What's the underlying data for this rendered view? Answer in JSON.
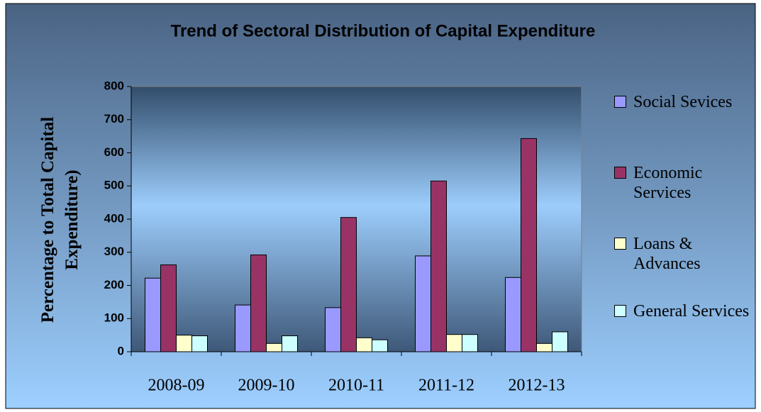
{
  "chart_data": {
    "type": "bar",
    "title": "Trend of Sectoral Distribution of Capital Expenditure",
    "y_label": "Percentage to Total Capital Expenditure)",
    "categories": [
      "2008-09",
      "2009-10",
      "2010-11",
      "2011-12",
      "2012-13"
    ],
    "series": [
      {
        "name": "Social Sevices",
        "color": "#9999ff",
        "values": [
          222,
          141,
          133,
          289,
          224
        ]
      },
      {
        "name": "Economic Services",
        "color": "#993366",
        "values": [
          262,
          292,
          405,
          515,
          643
        ]
      },
      {
        "name": "Loans & Advances",
        "color": "#ffffcc",
        "values": [
          50,
          25,
          42,
          52,
          25
        ]
      },
      {
        "name": "General Services",
        "color": "#ccffff",
        "values": [
          48,
          48,
          36,
          52,
          60
        ]
      }
    ],
    "ylim": [
      0,
      800
    ],
    "yticks": [
      0,
      100,
      200,
      300,
      400,
      500,
      600,
      700,
      800
    ],
    "legend": "right"
  }
}
